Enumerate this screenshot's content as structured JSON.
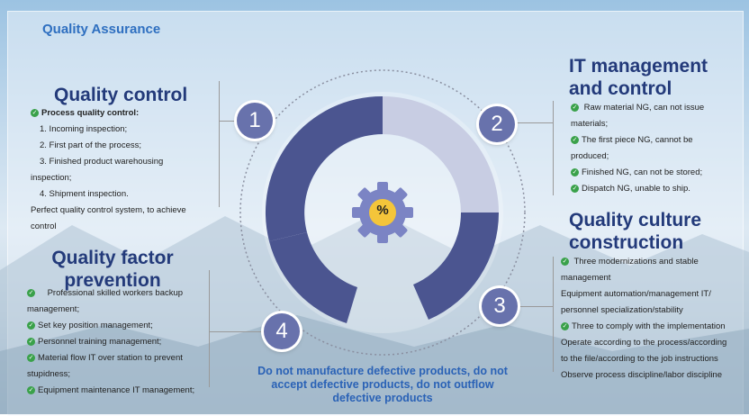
{
  "header": {
    "title": "Quality Assurance"
  },
  "sections": {
    "quality_control": {
      "number": "1",
      "title": "Quality control",
      "lead": "Process quality control:",
      "items": [
        "1. Incoming inspection;",
        "2. First part of the process;",
        "3. Finished product warehousing",
        "inspection;",
        "4. Shipment inspection.",
        "Perfect quality control system, to achieve",
        "control"
      ]
    },
    "it_management": {
      "number": "2",
      "title_line1": "IT management",
      "title_line2": "and control",
      "items": [
        "Raw material NG, can not issue",
        "materials;",
        "The first piece NG, cannot be",
        "produced;",
        "Finished NG, can not be stored;",
        "Dispatch NG, unable to ship."
      ]
    },
    "quality_culture": {
      "number": "3",
      "title_line1": "Quality culture",
      "title_line2": "construction",
      "items": [
        "Three modernizations and stable",
        "management",
        "Equipment automation/management IT/",
        "personnel specialization/stability",
        "Three to comply with the implementation",
        "Operate according to the process/according",
        "to the file/according to the job instructions",
        "Observe process discipline/labor discipline"
      ]
    },
    "quality_factor": {
      "number": "4",
      "title_line1": "Quality factor",
      "title_line2": "prevention",
      "items": [
        "Professional skilled workers backup",
        "management;",
        "Set key position management;",
        "Personnel training management;",
        "Material flow IT over station to prevent",
        "stupidness;",
        "Equipment maintenance IT management;"
      ]
    }
  },
  "center": {
    "symbol": "%"
  },
  "footer": {
    "line1": "Do not manufacture defective products, do not",
    "line2": "accept defective products, do not outflow",
    "line3": "defective products"
  },
  "colors": {
    "ring_dark": "#4b5590",
    "ring_light": "#c8cde3",
    "badge": "#6872ac",
    "heading": "#233a7a",
    "accent": "#2e6fc0",
    "check": "#3aa14a"
  }
}
